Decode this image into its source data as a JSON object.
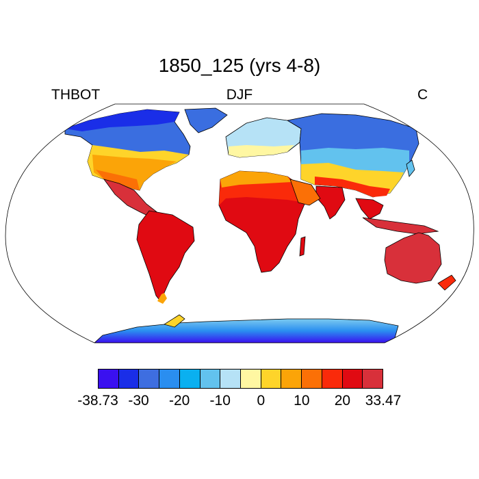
{
  "title": "1850_125 (yrs 4-8)",
  "left_label": "THBOT",
  "center_label": "DJF",
  "right_label": "C",
  "colorbar": {
    "colors": [
      "#3a10f0",
      "#1a2ee8",
      "#3e6ee0",
      "#2a8ef0",
      "#0ab0f0",
      "#62c2ee",
      "#b6e2f6",
      "#fff7a2",
      "#fed42a",
      "#fba408",
      "#fb7006",
      "#fa2a0a",
      "#e00a12",
      "#d8303a"
    ],
    "tick_labels": [
      "-38.73",
      "-30",
      "-20",
      "-10",
      "0",
      "10",
      "20",
      "33.47"
    ]
  }
}
